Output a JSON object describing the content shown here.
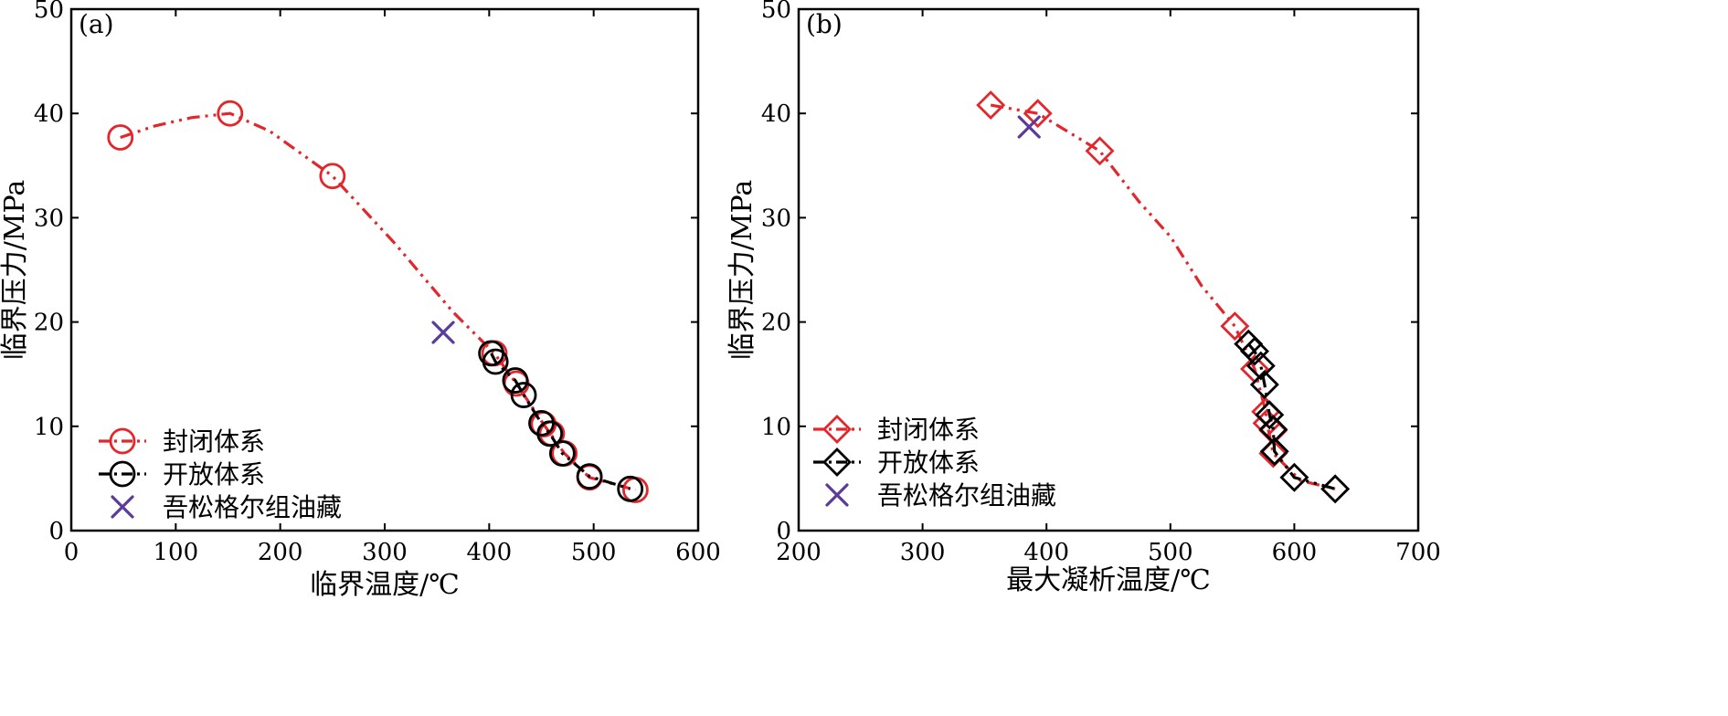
{
  "chart_data": [
    {
      "type": "scatter",
      "panel_label": "(a)",
      "xlabel": "临界温度/℃",
      "ylabel": "临界压力/MPa",
      "xlim": [
        0,
        600
      ],
      "ylim": [
        0,
        50
      ],
      "xticks": [
        "0",
        "100",
        "200",
        "300",
        "400",
        "500",
        "600"
      ],
      "yticks": [
        "0",
        "10",
        "20",
        "30",
        "40",
        "50"
      ],
      "grid": false,
      "legend_position": "bottom-left",
      "series": [
        {
          "name": "封闭体系",
          "marker": "circle",
          "line": "dash-dot",
          "color": "#e3262b",
          "points": [
            [
              47,
              37.7
            ],
            [
              152,
              40.0
            ],
            [
              250,
              34.0
            ],
            [
              405,
              17.0
            ],
            [
              426,
              14.1
            ],
            [
              452,
              10.2
            ],
            [
              460,
              9.3
            ],
            [
              472,
              7.4
            ],
            [
              496,
              5.1
            ],
            [
              540,
              3.9
            ]
          ],
          "curve": [
            [
              47,
              37.7
            ],
            [
              80,
              38.8
            ],
            [
              115,
              39.6
            ],
            [
              152,
              40.0
            ],
            [
              190,
              38.3
            ],
            [
              250,
              34.0
            ],
            [
              310,
              27.5
            ],
            [
              365,
              21.0
            ],
            [
              405,
              17.0
            ],
            [
              426,
              14.1
            ],
            [
              452,
              10.2
            ],
            [
              472,
              7.4
            ],
            [
              496,
              5.1
            ],
            [
              540,
              3.9
            ]
          ]
        },
        {
          "name": "开放体系",
          "marker": "circle",
          "line": "dash-dot",
          "color": "#000000",
          "points": [
            [
              402,
              17.0
            ],
            [
              406,
              16.2
            ],
            [
              425,
              14.4
            ],
            [
              433,
              13.0
            ],
            [
              450,
              10.3
            ],
            [
              458,
              9.3
            ],
            [
              470,
              7.4
            ],
            [
              496,
              5.2
            ],
            [
              535,
              4.0
            ]
          ],
          "curve": [
            [
              402,
              17.0
            ],
            [
              406,
              16.2
            ],
            [
              425,
              14.4
            ],
            [
              433,
              13.0
            ],
            [
              450,
              10.3
            ],
            [
              458,
              9.3
            ],
            [
              470,
              7.4
            ],
            [
              496,
              5.2
            ],
            [
              535,
              4.0
            ]
          ]
        },
        {
          "name": "吾松格尔组油藏",
          "marker": "cross",
          "line": "none",
          "color": "#5b3a9e",
          "points": [
            [
              356,
              19.0
            ]
          ]
        }
      ]
    },
    {
      "type": "scatter",
      "panel_label": "(b)",
      "xlabel": "最大凝析温度/℃",
      "ylabel": "临界压力/MPa",
      "xlim": [
        200,
        700
      ],
      "ylim": [
        0,
        50
      ],
      "xticks": [
        "200",
        "300",
        "400",
        "500",
        "600",
        "700"
      ],
      "yticks": [
        "0",
        "10",
        "20",
        "30",
        "40",
        "50"
      ],
      "grid": false,
      "legend_position": "bottom-left",
      "series": [
        {
          "name": "封闭体系",
          "marker": "diamond",
          "line": "dash-dot",
          "color": "#e3262b",
          "points": [
            [
              355,
              40.8
            ],
            [
              393,
              40.0
            ],
            [
              443,
              36.4
            ],
            [
              552,
              19.6
            ],
            [
              568,
              15.5
            ],
            [
              577,
              11.4
            ],
            [
              578,
              10.3
            ],
            [
              583,
              9.6
            ],
            [
              583,
              7.4
            ],
            [
              633,
              4.0
            ]
          ],
          "curve": [
            [
              355,
              40.8
            ],
            [
              393,
              40.0
            ],
            [
              443,
              36.4
            ],
            [
              475,
              31.5
            ],
            [
              500,
              28.2
            ],
            [
              525,
              23.5
            ],
            [
              552,
              19.6
            ],
            [
              568,
              15.5
            ],
            [
              577,
              11.4
            ],
            [
              578,
              10.3
            ],
            [
              583,
              7.4
            ],
            [
              605,
              4.8
            ],
            [
              633,
              4.0
            ]
          ]
        },
        {
          "name": "开放体系",
          "marker": "diamond",
          "line": "dash-dot",
          "color": "#000000",
          "points": [
            [
              563,
              17.9
            ],
            [
              568,
              17.2
            ],
            [
              573,
              15.8
            ],
            [
              576,
              14.0
            ],
            [
              580,
              11.1
            ],
            [
              583,
              9.7
            ],
            [
              584,
              7.6
            ],
            [
              600,
              5.1
            ],
            [
              633,
              4.0
            ]
          ],
          "curve": [
            [
              563,
              17.9
            ],
            [
              568,
              17.2
            ],
            [
              573,
              15.8
            ],
            [
              576,
              14.0
            ],
            [
              580,
              11.1
            ],
            [
              583,
              9.7
            ],
            [
              584,
              7.6
            ],
            [
              600,
              5.1
            ],
            [
              633,
              4.0
            ]
          ]
        },
        {
          "name": "吾松格尔组油藏",
          "marker": "cross",
          "line": "none",
          "color": "#5b3a9e",
          "points": [
            [
              386,
              38.7
            ]
          ]
        }
      ]
    }
  ]
}
